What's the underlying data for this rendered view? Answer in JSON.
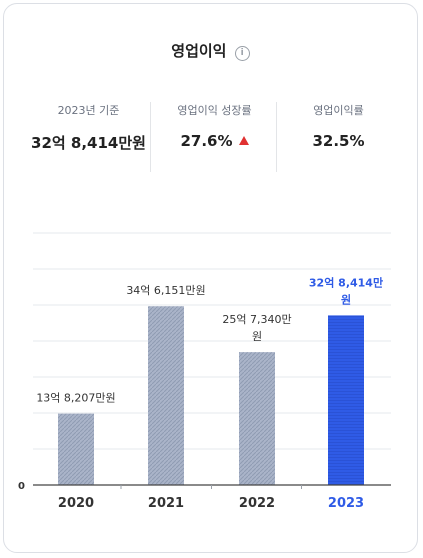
{
  "header": {
    "title": "영업이익"
  },
  "stats": [
    {
      "label": "2023년 기준",
      "value": "32억 8,414만원"
    },
    {
      "label": "영업이익 성장률",
      "value": "27.6%"
    },
    {
      "label": "영업이익률",
      "value": "32.5%"
    }
  ],
  "colors": {
    "bar": "#a5b0c6",
    "highlight": "#2f5be6",
    "axis": "#444444",
    "grid": "#e6e8ec"
  },
  "chart_data": {
    "type": "bar",
    "categories": [
      "2020",
      "2021",
      "2022",
      "2023"
    ],
    "values": [
      1382070000,
      3461510000,
      2573400000,
      3284140000
    ],
    "data_labels": [
      [
        "13억 8,207만원"
      ],
      [
        "34억 6,151만원"
      ],
      [
        "25억 7,340만",
        "원"
      ],
      [
        "32억 8,414만",
        "원"
      ]
    ],
    "highlight_index": 3,
    "ylim": [
      0,
      4880000000
    ],
    "y_tick_labels": [
      "0"
    ],
    "grid": true
  }
}
